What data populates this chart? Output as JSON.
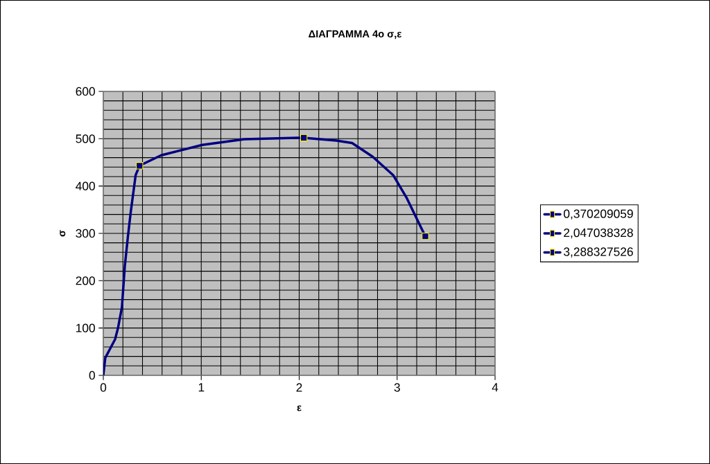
{
  "chart_data": {
    "type": "line",
    "title": "ΔΙΑΓΡΑΜΜΑ 4ο σ,ε",
    "xlabel": "ε",
    "ylabel": "σ",
    "xlim": [
      0,
      4
    ],
    "xticks": [
      0,
      1,
      2,
      3,
      4
    ],
    "ylim": [
      0,
      600
    ],
    "yticks": [
      0,
      100,
      200,
      300,
      400,
      500,
      600
    ],
    "grid": true,
    "legend": "right",
    "marker": "square",
    "line_style": "solid",
    "series": [
      {
        "marker": "none",
        "color": "#000080",
        "x": [
          0,
          0.02,
          0.12,
          0.15,
          0.19,
          0.22,
          0.25,
          0.28,
          0.33,
          0.37,
          0.59,
          1.01,
          1.44,
          1.98,
          2.047,
          2.38,
          2.54,
          2.75,
          2.96,
          3.1,
          3.25,
          3.288
        ],
        "values": [
          0,
          37,
          76,
          100,
          144,
          232,
          291,
          345,
          423,
          443,
          465,
          487,
          499,
          502,
          502,
          496,
          491,
          462,
          423,
          374,
          310,
          294
        ]
      },
      {
        "type": "scatter",
        "name": "0,370209059",
        "color": "#000080",
        "x": [
          0.37
        ],
        "values": [
          443
        ]
      },
      {
        "type": "scatter",
        "name": "2,047038328",
        "color": "#000080",
        "x": [
          2.047
        ],
        "values": [
          502
        ]
      },
      {
        "type": "scatter",
        "name": "3,288327526",
        "color": "#000080",
        "x": [
          3.288
        ],
        "values": [
          294
        ]
      }
    ]
  }
}
